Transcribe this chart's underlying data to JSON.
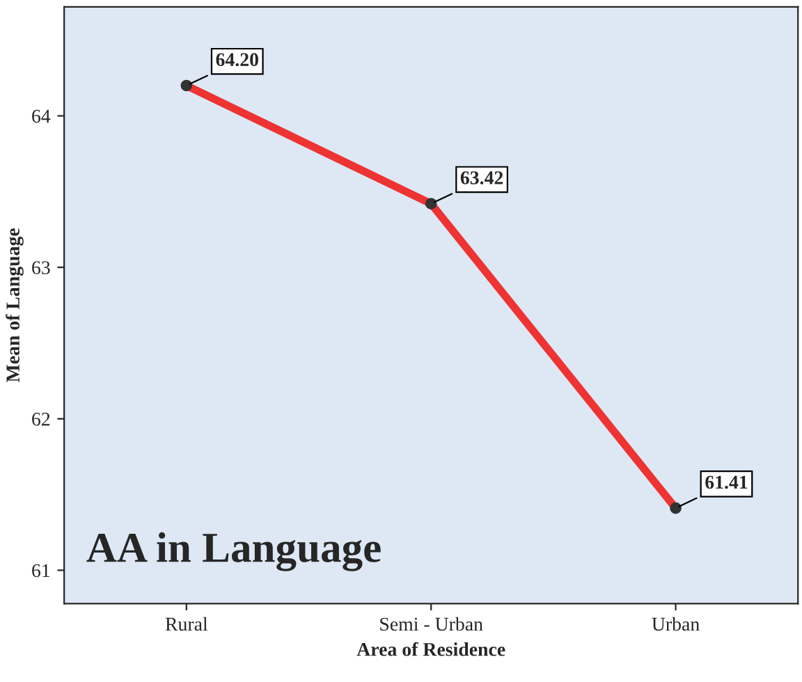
{
  "chart_data": {
    "type": "line",
    "xlabel": "Area of Residence",
    "ylabel": "Mean of Language",
    "categories": [
      "Rural",
      "Semi - Urban",
      "Urban"
    ],
    "series": [
      {
        "color": "#ee3333",
        "values": [
          64.2,
          63.42,
          61.41
        ],
        "value_labels": [
          "64.20",
          "63.42",
          "61.41"
        ]
      }
    ],
    "ylim": [
      60.78,
      64.72
    ],
    "yticks": [
      61,
      62,
      63,
      64
    ],
    "marker": "circle",
    "line_style": "solid",
    "grid": false,
    "legend": false,
    "annotations": [
      "AA in Language"
    ]
  }
}
